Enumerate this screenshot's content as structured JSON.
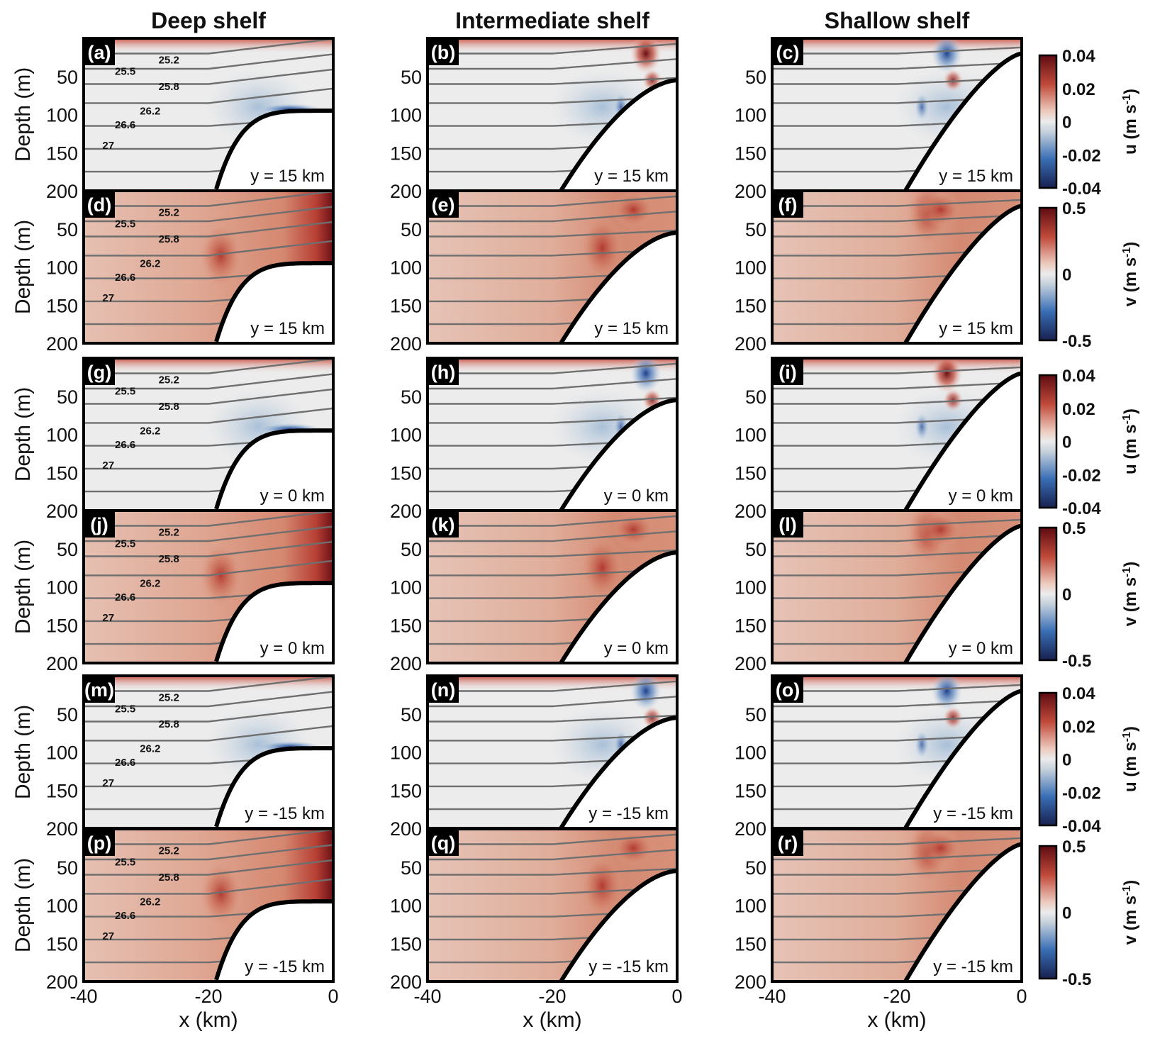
{
  "chart_data": {
    "type": "heatmap",
    "columns": [
      "Deep shelf",
      "Intermediate shelf",
      "Shallow shelf"
    ],
    "xlabel": "x (km)",
    "ylabel": "Depth (m)",
    "xlim": [
      -40,
      0
    ],
    "ylim": [
      200,
      0
    ],
    "x_ticks": [
      "-40",
      "-20",
      "0"
    ],
    "y_ticks": [
      "50",
      "100",
      "150",
      "200"
    ],
    "shelf_depth_at_coast_m": [
      95,
      55,
      20
    ],
    "rows": [
      {
        "field": "u",
        "y_label": "y = 15 km",
        "panels": [
          "(a)",
          "(b)",
          "(c)"
        ]
      },
      {
        "field": "v",
        "y_label": "y = 15 km",
        "panels": [
          "(d)",
          "(e)",
          "(f)"
        ]
      },
      {
        "field": "u",
        "y_label": "y = 0 km",
        "panels": [
          "(g)",
          "(h)",
          "(i)"
        ]
      },
      {
        "field": "v",
        "y_label": "y = 0 km",
        "panels": [
          "(j)",
          "(k)",
          "(l)"
        ]
      },
      {
        "field": "u",
        "y_label": "y = -15 km",
        "panels": [
          "(m)",
          "(n)",
          "(o)"
        ]
      },
      {
        "field": "v",
        "y_label": "y = -15 km",
        "panels": [
          "(p)",
          "(q)",
          "(r)"
        ]
      }
    ],
    "isopycnal_labels": [
      "25.2",
      "25.5",
      "25.8",
      "26.2",
      "26.6",
      "27"
    ],
    "colorbars": {
      "u": {
        "ticks": [
          "0.04",
          "0.02",
          "0",
          "-0.02",
          "-0.04"
        ],
        "label": "u (m s",
        "exp": "-1",
        "close": ")"
      },
      "v": {
        "ticks": [
          "0.5",
          "0",
          "-0.5"
        ],
        "label": "v (m s",
        "exp": "-1",
        "close": ")"
      }
    },
    "colors": {
      "negative": "#1b2a6b",
      "neutral": "#ececec",
      "positive": "#6b0d12",
      "contour": "#6f6f6f"
    }
  }
}
